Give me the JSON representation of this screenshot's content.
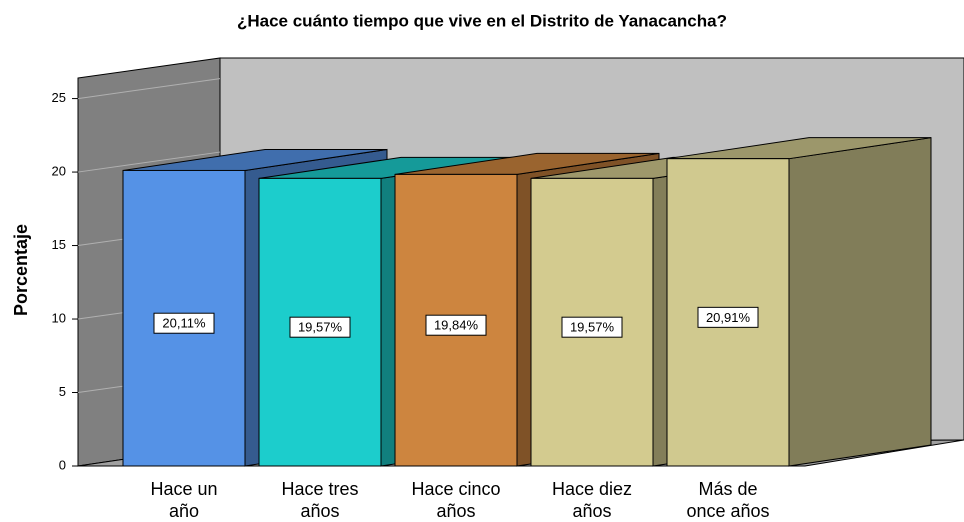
{
  "chart_data": {
    "type": "bar3d",
    "title": "¿Hace cuánto tiempo que vive en el Distrito de Yanacancha?",
    "y_label": "Porcentaje",
    "categories": [
      [
        "Hace un",
        "año"
      ],
      [
        "Hace tres",
        "años"
      ],
      [
        "Hace cinco",
        "años"
      ],
      [
        "Hace diez",
        "años"
      ],
      [
        "Más de",
        "once años"
      ]
    ],
    "values": [
      20.11,
      19.57,
      19.84,
      19.57,
      20.91
    ],
    "value_labels": [
      "20,11%",
      "19,57%",
      "19,84%",
      "19,57%",
      "20,91%"
    ],
    "colors": [
      "#5592e6",
      "#1ccdcc",
      "#cd853f",
      "#d3cb8f",
      "#d0c98f"
    ],
    "ylim": [
      0,
      26.4
    ],
    "yticks": [
      0,
      5,
      10,
      15,
      20,
      25
    ],
    "grid": true
  }
}
